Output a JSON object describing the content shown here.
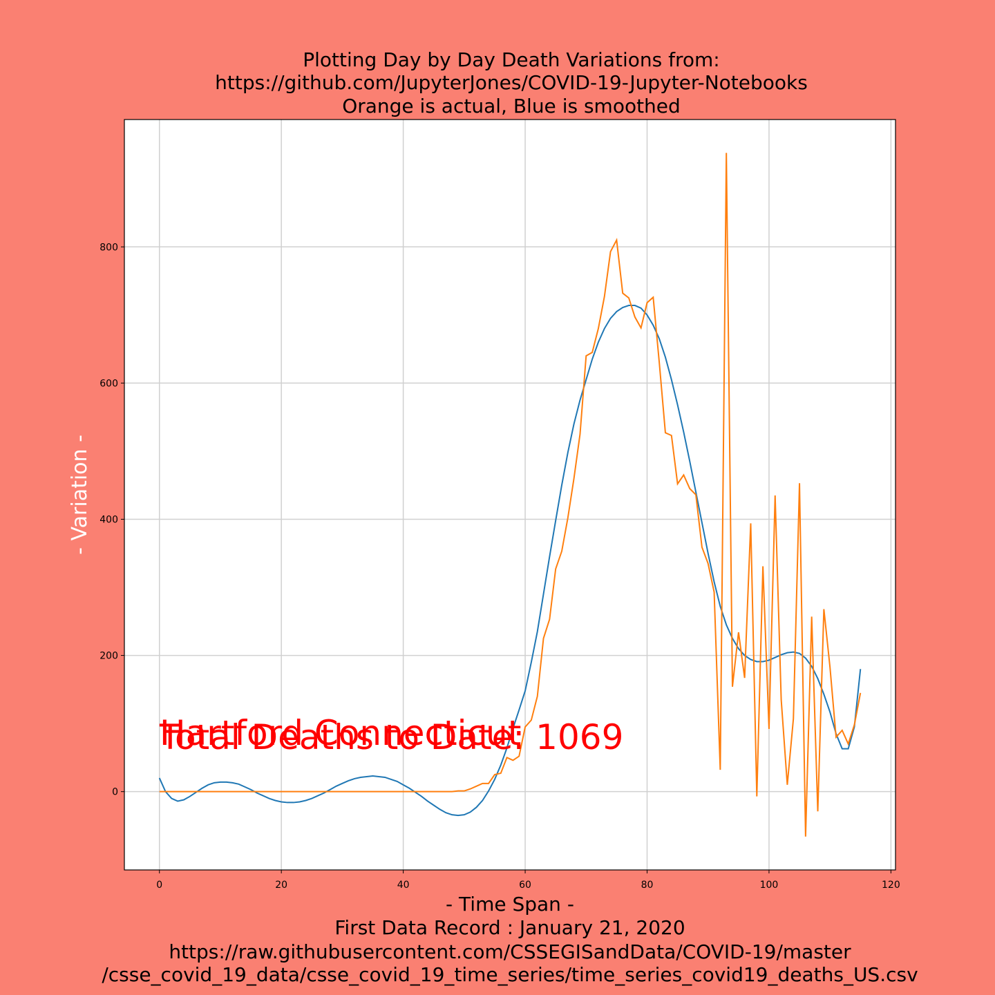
{
  "chart_data": {
    "type": "line",
    "title": [
      "Plotting Day by Day Death Variations from:",
      "https://github.com/JupyterJones/COVID-19-Jupyter-Notebooks",
      "Orange is actual, Blue is smoothed"
    ],
    "xlabel": [
      "- Time Span -",
      "First Data Record : January 21, 2020",
      "https://raw.githubusercontent.com/CSSEGISandData/COVID-19/master",
      "/csse_covid_19_data/csse_covid_19_time_series/time_series_covid19_deaths_US.csv"
    ],
    "ylabel": "- Variation -",
    "annotations": [
      "Hartford Connecticut",
      "Total Deaths to Date: 1069"
    ],
    "x": [
      0,
      1,
      2,
      3,
      4,
      5,
      6,
      7,
      8,
      9,
      10,
      11,
      12,
      13,
      14,
      15,
      16,
      17,
      18,
      19,
      20,
      21,
      22,
      23,
      24,
      25,
      26,
      27,
      28,
      29,
      30,
      31,
      32,
      33,
      34,
      35,
      36,
      37,
      38,
      39,
      40,
      41,
      42,
      43,
      44,
      45,
      46,
      47,
      48,
      49,
      50,
      51,
      52,
      53,
      54,
      55,
      56,
      57,
      58,
      59,
      60,
      61,
      62,
      63,
      64,
      65,
      66,
      67,
      68,
      69,
      70,
      71,
      72,
      73,
      74,
      75,
      76,
      77,
      78,
      79,
      80,
      81,
      82,
      83,
      84,
      85,
      86,
      87,
      88,
      89,
      90,
      91,
      92,
      93,
      94,
      95,
      96,
      97,
      98,
      99,
      100,
      101,
      102,
      103,
      104,
      105,
      106,
      107,
      108,
      109,
      110,
      111,
      112,
      113,
      114,
      115
    ],
    "series": [
      {
        "color": "#1f77b4",
        "values": [
          20,
          0,
          -10,
          -14,
          -12,
          -7,
          -1,
          5,
          10,
          13,
          14,
          14,
          13,
          11,
          7,
          3,
          -2,
          -6,
          -10,
          -13,
          -15,
          -16,
          -16,
          -15,
          -13,
          -10,
          -6,
          -2,
          3,
          8,
          12,
          16,
          19,
          21,
          22,
          23,
          22,
          21,
          18,
          15,
          10,
          5,
          -1,
          -7,
          -14,
          -20,
          -26,
          -31,
          -34,
          -35,
          -34,
          -30,
          -23,
          -13,
          1,
          18,
          39,
          64,
          93,
          120,
          148,
          190,
          235,
          290,
          345,
          398,
          450,
          498,
          540,
          575,
          605,
          635,
          660,
          680,
          695,
          705,
          711,
          714,
          714,
          710,
          700,
          685,
          665,
          638,
          605,
          568,
          528,
          485,
          440,
          395,
          350,
          308,
          272,
          245,
          225,
          210,
          200,
          194,
          191,
          191,
          193,
          197,
          201,
          204,
          205,
          203,
          196,
          184,
          166,
          143,
          117,
          85,
          63,
          63,
          95,
          180
        ]
      },
      {
        "color": "#ff7f0e",
        "values": [
          0,
          0,
          0,
          0,
          0,
          0,
          0,
          0,
          0,
          0,
          0,
          0,
          0,
          0,
          0,
          0,
          0,
          0,
          0,
          0,
          0,
          0,
          0,
          0,
          0,
          0,
          0,
          0,
          0,
          0,
          0,
          0,
          0,
          0,
          0,
          0,
          0,
          0,
          0,
          0,
          0,
          0,
          0,
          0,
          0,
          0,
          0,
          0,
          0,
          1,
          1,
          4,
          8,
          12,
          12,
          25,
          27,
          50,
          46,
          52,
          95,
          105,
          140,
          225,
          253,
          327,
          353,
          402,
          460,
          525,
          640,
          645,
          680,
          727,
          793,
          810,
          732,
          725,
          697,
          681,
          718,
          726,
          630,
          527,
          523,
          452,
          465,
          445,
          436,
          359,
          335,
          293,
          32,
          938,
          154,
          234,
          167,
          394,
          -7,
          331,
          92,
          435,
          135,
          10,
          107,
          453,
          -66,
          257,
          -29,
          268,
          183,
          80,
          90,
          70,
          98,
          145
        ]
      }
    ],
    "xlim": [
      -5.75,
      120.75
    ],
    "ylim": [
      -115,
      987
    ],
    "xticks": [
      0,
      20,
      40,
      60,
      80,
      100,
      120
    ],
    "yticks": [
      0,
      200,
      400,
      600,
      800
    ],
    "grid": true
  }
}
